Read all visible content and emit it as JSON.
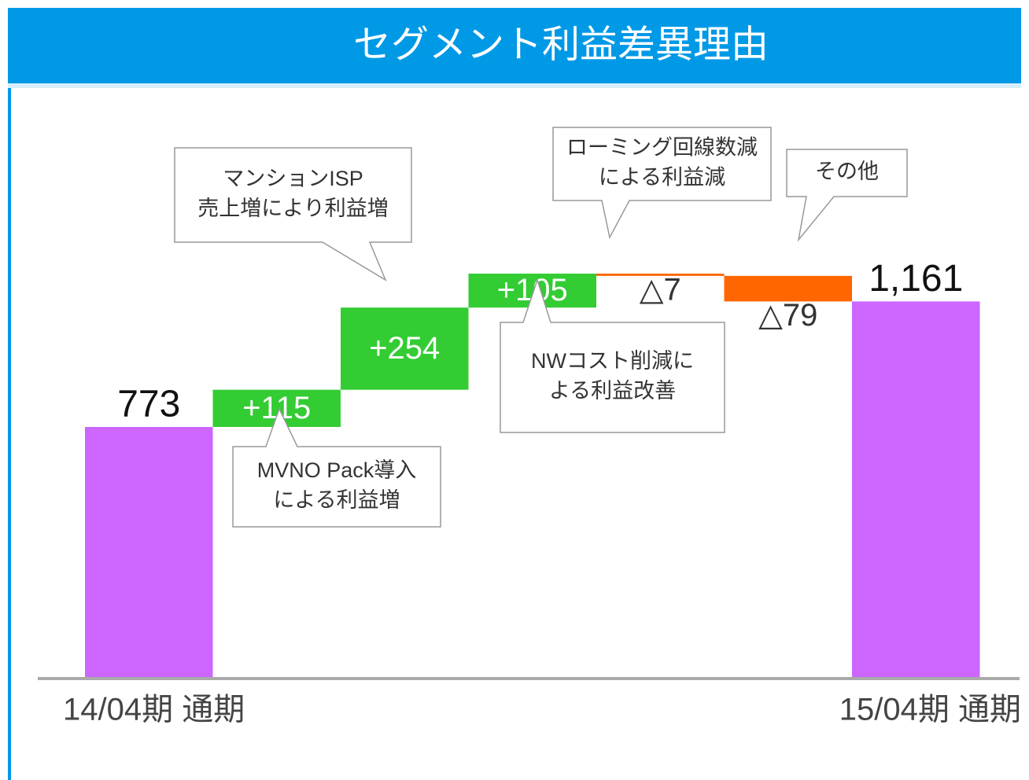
{
  "chart_data": {
    "type": "waterfall",
    "title": "セグメント利益差異理由",
    "categories": [
      "14/04期 通期",
      null,
      null,
      null,
      null,
      null,
      "15/04期 通期"
    ],
    "values": [
      773,
      115,
      254,
      105,
      -7,
      -79,
      1161
    ],
    "value_labels": [
      "773",
      "+115",
      "+254",
      "+105",
      "△7",
      "△79",
      "1,161"
    ],
    "colors": {
      "total": "#cc66ff",
      "increase": "#33cc33",
      "decrease": "#ff6600"
    },
    "annotations": [
      [
        "MVNO Pack導入",
        "による利益増"
      ],
      [
        "マンションISP",
        "売上増により利益増"
      ],
      [
        "NWコスト削減に",
        "よる利益改善"
      ],
      [
        "ローミング回線数減",
        "による利益減"
      ],
      [
        "その他"
      ]
    ]
  }
}
